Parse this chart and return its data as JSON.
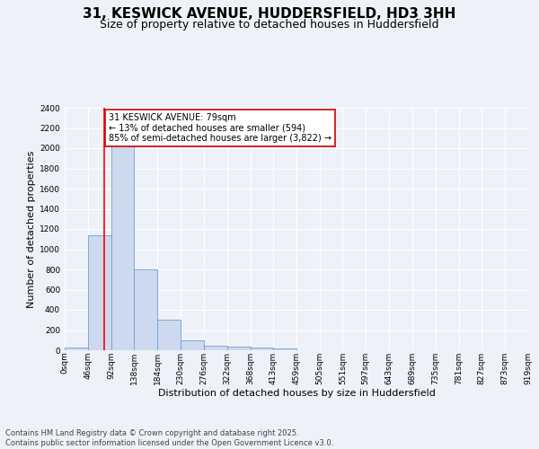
{
  "title": "31, KESWICK AVENUE, HUDDERSFIELD, HD3 3HH",
  "subtitle": "Size of property relative to detached houses in Huddersfield",
  "xlabel": "Distribution of detached houses by size in Huddersfield",
  "ylabel": "Number of detached properties",
  "bar_values": [
    30,
    1140,
    2050,
    800,
    300,
    100,
    45,
    40,
    25,
    20,
    0,
    0,
    0,
    0,
    0,
    0,
    0,
    0,
    0,
    0
  ],
  "bin_edges": [
    0,
    46,
    92,
    138,
    184,
    230,
    276,
    322,
    368,
    413,
    459,
    505,
    551,
    597,
    643,
    689,
    735,
    781,
    827,
    873,
    919
  ],
  "xtick_labels": [
    "0sqm",
    "46sqm",
    "92sqm",
    "138sqm",
    "184sqm",
    "230sqm",
    "276sqm",
    "322sqm",
    "368sqm",
    "413sqm",
    "459sqm",
    "505sqm",
    "551sqm",
    "597sqm",
    "643sqm",
    "689sqm",
    "735sqm",
    "781sqm",
    "827sqm",
    "873sqm",
    "919sqm"
  ],
  "bar_color": "#ccd9ee",
  "bar_edge_color": "#6a9fd8",
  "ylim": [
    0,
    2400
  ],
  "yticks": [
    0,
    200,
    400,
    600,
    800,
    1000,
    1200,
    1400,
    1600,
    1800,
    2000,
    2200,
    2400
  ],
  "red_line_x": 79,
  "annotation_text": "31 KESWICK AVENUE: 79sqm\n← 13% of detached houses are smaller (594)\n85% of semi-detached houses are larger (3,822) →",
  "annotation_box_color": "#ffffff",
  "annotation_box_edge_color": "#cc0000",
  "footer_line1": "Contains HM Land Registry data © Crown copyright and database right 2025.",
  "footer_line2": "Contains public sector information licensed under the Open Government Licence v3.0.",
  "background_color": "#eef2f8",
  "grid_color": "#ffffff",
  "title_fontsize": 11,
  "subtitle_fontsize": 9,
  "axis_label_fontsize": 8,
  "tick_fontsize": 6.5,
  "annotation_fontsize": 7,
  "footer_fontsize": 6
}
